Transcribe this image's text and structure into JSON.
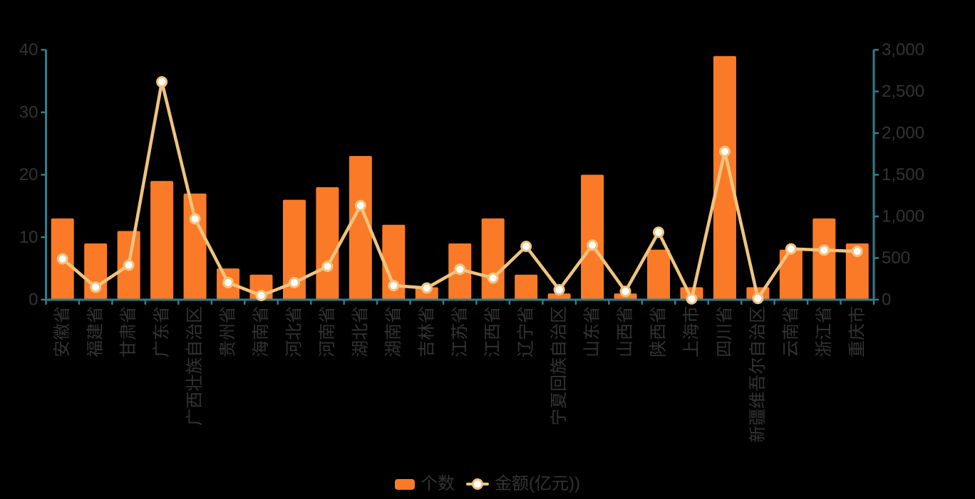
{
  "page": {
    "background": "#000000"
  },
  "legend": {
    "items": [
      {
        "label": "个数",
        "symbol": "bar-swatch"
      },
      {
        "label": "金额(亿元))",
        "symbol": "line-marker"
      }
    ]
  },
  "chart_data": {
    "type": "bar",
    "subtype": "dual-axis bar+line combo",
    "title": "",
    "xlabel": "",
    "ylabel_left": "",
    "ylabel_right": "",
    "grid": false,
    "legend_position": "bottom-center",
    "categories": [
      "安徽省",
      "福建省",
      "甘肃省",
      "广东省",
      "广西壮族自治区",
      "贵州省",
      "海南省",
      "河北省",
      "河南省",
      "湖北省",
      "湖南省",
      "吉林省",
      "江苏省",
      "江西省",
      "辽宁省",
      "宁夏回族自治区",
      "山东省",
      "山西省",
      "陕西省",
      "上海市",
      "四川省",
      "新疆维吾尔自治区",
      "云南省",
      "浙江省",
      "重庆市"
    ],
    "series": [
      {
        "name": "个数",
        "type": "bar",
        "axis": "left",
        "color": "#fb7a28",
        "values": [
          13,
          9,
          11,
          19,
          17,
          5,
          4,
          16,
          18,
          23,
          12,
          2,
          9,
          13,
          4,
          1,
          20,
          1,
          8,
          2,
          39,
          2,
          8,
          13,
          9
        ]
      },
      {
        "name": "金额(亿元))",
        "type": "line",
        "axis": "right",
        "color": "#f0c47e",
        "marker": "circle",
        "marker_fill": "#ffffff",
        "values": [
          490,
          150,
          415,
          2615,
          970,
          205,
          50,
          205,
          400,
          1130,
          170,
          140,
          365,
          260,
          640,
          120,
          655,
          100,
          810,
          10,
          1780,
          15,
          610,
          595,
          580
        ]
      }
    ],
    "y_left": {
      "min": 0,
      "max": 40,
      "tick_step": 10,
      "tick_labels": [
        "0",
        "10",
        "20",
        "30",
        "40"
      ]
    },
    "y_right": {
      "min": 0,
      "max": 3000,
      "tick_step": 500,
      "tick_labels": [
        "0",
        "500",
        "1,000",
        "1,500",
        "2,000",
        "2,500",
        "3,000"
      ]
    },
    "x_axis": {
      "label_rotation": -90
    },
    "colors": {
      "axis": "#2e7f8e",
      "tick_label": "#333333",
      "bar": "#fb7a28",
      "line": "#f0c47e",
      "marker_fill": "#ffffff",
      "background": "#000000"
    }
  }
}
